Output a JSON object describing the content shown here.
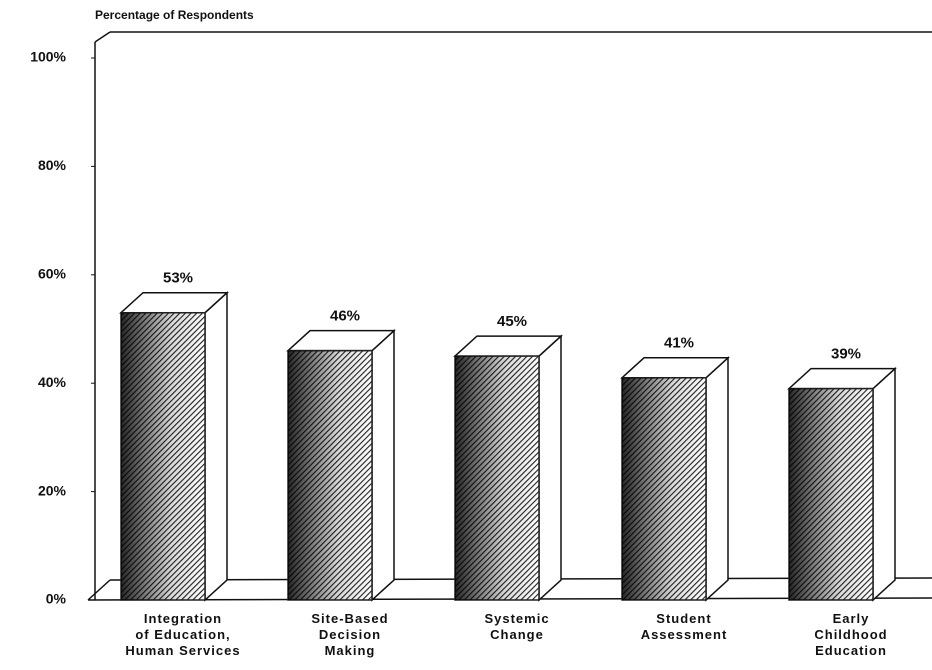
{
  "chart_data": {
    "type": "bar3d",
    "y_axis_label": "Percentage of Respondents",
    "categories": [
      "Integration\nof Education,\nHuman Services",
      "Site-Based\nDecision\nMaking",
      "Systemic\nChange",
      "Student\nAssessment",
      "Early\nChildhood\nEducation"
    ],
    "values": [
      53,
      46,
      45,
      41,
      39
    ],
    "value_labels": [
      "53%",
      "46%",
      "45%",
      "41%",
      "39%"
    ],
    "color": "#222222",
    "ylim": [
      0,
      100
    ],
    "yticks": [
      {
        "value": 0,
        "label": "0%"
      },
      {
        "value": 20,
        "label": "20%"
      },
      {
        "value": 40,
        "label": "40%"
      },
      {
        "value": 60,
        "label": "60%"
      },
      {
        "value": 80,
        "label": "80%"
      },
      {
        "value": 100,
        "label": "100%"
      }
    ]
  }
}
